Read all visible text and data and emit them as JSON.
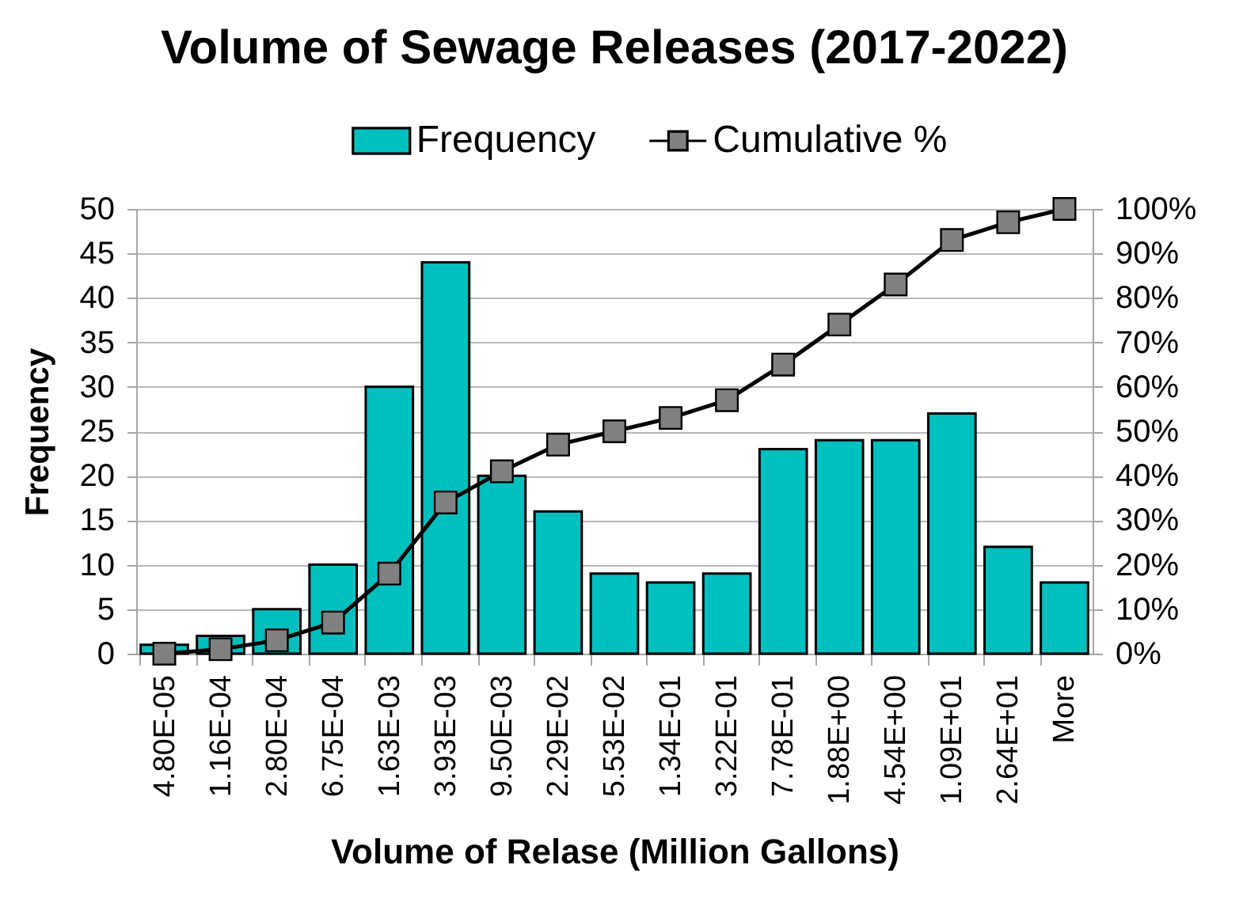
{
  "chart_data": {
    "type": "bar",
    "title": "Volume of Sewage Releases (2017-2022)",
    "xlabel": "Volume of Relase (Million Gallons)",
    "ylabel": "Frequency",
    "categories": [
      "4.80E-05",
      "1.16E-04",
      "2.80E-04",
      "6.75E-04",
      "1.63E-03",
      "3.93E-03",
      "9.50E-03",
      "2.29E-02",
      "5.53E-02",
      "1.34E-01",
      "3.22E-01",
      "7.78E-01",
      "1.88E+00",
      "4.54E+00",
      "1.09E+01",
      "2.64E+01",
      "More"
    ],
    "series": [
      {
        "name": "Frequency",
        "color": "#00bfbf",
        "values": [
          1,
          2,
          5,
          10,
          30,
          44,
          20,
          16,
          9,
          8,
          9,
          23,
          24,
          24,
          27,
          12,
          8
        ]
      },
      {
        "name": "Cumulative %",
        "type": "line",
        "axis": "y2",
        "color": "#808080",
        "values": [
          0,
          1,
          3,
          7,
          18,
          34,
          41,
          47,
          50,
          53,
          57,
          65,
          74,
          83,
          93,
          97,
          100
        ]
      }
    ],
    "ylim": [
      0,
      50
    ],
    "yticks": [
      0,
      5,
      10,
      15,
      20,
      25,
      30,
      35,
      40,
      45,
      50
    ],
    "y2lim": [
      0,
      100
    ],
    "y2ticks": [
      {
        "value": 0,
        "label": "0%"
      },
      {
        "value": 10,
        "label": "10%"
      },
      {
        "value": 20,
        "label": "20%"
      },
      {
        "value": 30,
        "label": "30%"
      },
      {
        "value": 40,
        "label": "40%"
      },
      {
        "value": 50,
        "label": "50%"
      },
      {
        "value": 60,
        "label": "60%"
      },
      {
        "value": 70,
        "label": "70%"
      },
      {
        "value": 80,
        "label": "80%"
      },
      {
        "value": 90,
        "label": "90%"
      },
      {
        "value": 100,
        "label": "100%"
      }
    ],
    "grid": "y",
    "legend": "top",
    "marker": "square",
    "line_style": "solid"
  }
}
